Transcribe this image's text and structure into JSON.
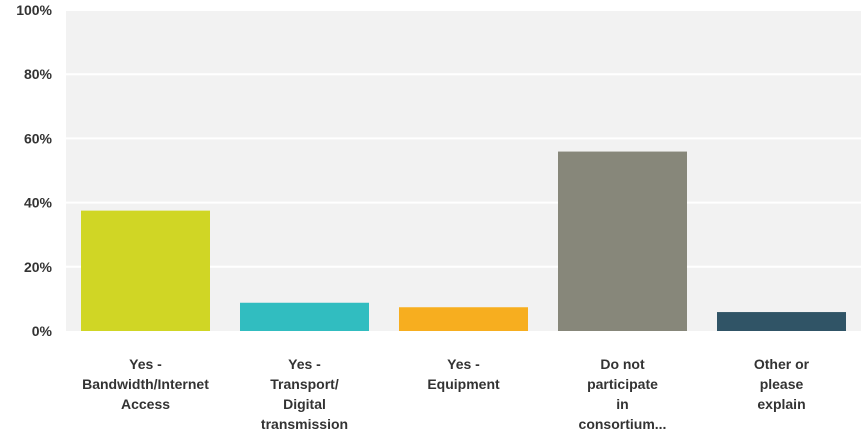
{
  "chart_data": {
    "type": "bar",
    "categories": [
      [
        "Yes -",
        "Bandwidth/Internet",
        "Access"
      ],
      [
        "Yes -",
        "Transport/",
        "Digital",
        "transmission"
      ],
      [
        "Yes -",
        "Equipment"
      ],
      [
        "Do not",
        "participate",
        "in",
        "consortium..."
      ],
      [
        "Other or",
        "please",
        "explain"
      ]
    ],
    "values": [
      37.5,
      8.8,
      7.4,
      55.9,
      5.9
    ],
    "ylim": [
      0,
      100
    ],
    "yticks": [
      0,
      20,
      40,
      60,
      80,
      100
    ],
    "ytick_labels": [
      "0%",
      "20%",
      "40%",
      "60%",
      "80%",
      "100%"
    ],
    "colors": [
      "#d0d625",
      "#31bdc0",
      "#f7ae1f",
      "#87877a",
      "#305466"
    ],
    "grid": true,
    "background_color": "#f2f2f2",
    "grid_color": "#ffffff"
  }
}
